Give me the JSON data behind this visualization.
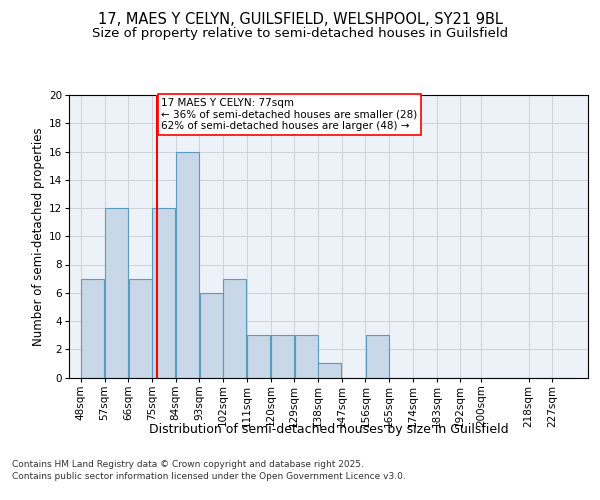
{
  "title1": "17, MAES Y CELYN, GUILSFIELD, WELSHPOOL, SY21 9BL",
  "title2": "Size of property relative to semi-detached houses in Guilsfield",
  "xlabel": "Distribution of semi-detached houses by size in Guilsfield",
  "ylabel": "Number of semi-detached properties",
  "footnote1": "Contains HM Land Registry data © Crown copyright and database right 2025.",
  "footnote2": "Contains public sector information licensed under the Open Government Licence v3.0.",
  "bin_labels": [
    "48sqm",
    "57sqm",
    "66sqm",
    "75sqm",
    "84sqm",
    "93sqm",
    "102sqm",
    "111sqm",
    "120sqm",
    "129sqm",
    "138sqm",
    "147sqm",
    "156sqm",
    "165sqm",
    "174sqm",
    "183sqm",
    "192sqm",
    "200sqm",
    "218sqm",
    "227sqm"
  ],
  "bin_edges": [
    48,
    57,
    66,
    75,
    84,
    93,
    102,
    111,
    120,
    129,
    138,
    147,
    156,
    165,
    174,
    183,
    192,
    200,
    218,
    227,
    236
  ],
  "counts": [
    7,
    12,
    7,
    12,
    16,
    6,
    7,
    3,
    3,
    3,
    1,
    0,
    3,
    0,
    0,
    0,
    0,
    0,
    0,
    0
  ],
  "bar_color": "#c8d8e8",
  "bar_edgecolor": "#5a9abf",
  "vline_x": 77,
  "vline_color": "red",
  "annotation_text": "17 MAES Y CELYN: 77sqm\n← 36% of semi-detached houses are smaller (28)\n62% of semi-detached houses are larger (48) →",
  "annotation_box_color": "red",
  "ylim": [
    0,
    20
  ],
  "yticks": [
    0,
    2,
    4,
    6,
    8,
    10,
    12,
    14,
    16,
    18,
    20
  ],
  "grid_color": "#cccccc",
  "background_color": "#edf2f8",
  "title1_fontsize": 10.5,
  "title2_fontsize": 9.5,
  "xlabel_fontsize": 9,
  "ylabel_fontsize": 8.5,
  "tick_fontsize": 7.5,
  "annotation_fontsize": 7.5,
  "footnote_fontsize": 6.5
}
